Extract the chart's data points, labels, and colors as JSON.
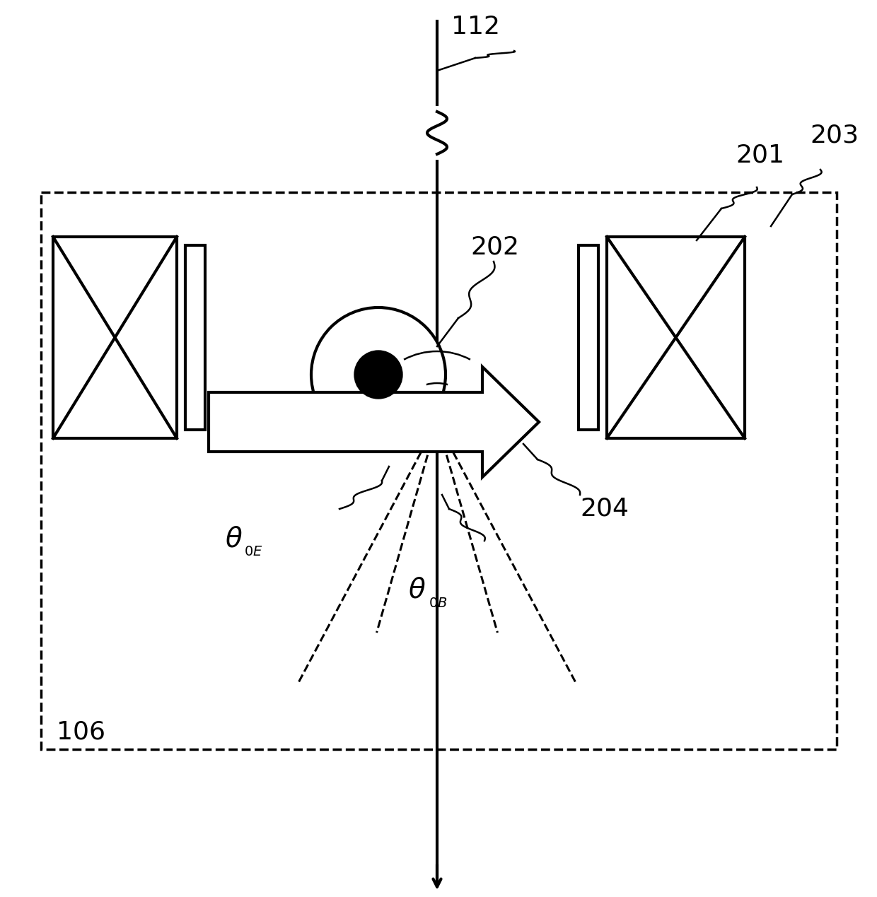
{
  "bg_color": "#ffffff",
  "line_color": "#000000",
  "fig_width": 12.4,
  "fig_height": 12.69,
  "dpi": 100
}
